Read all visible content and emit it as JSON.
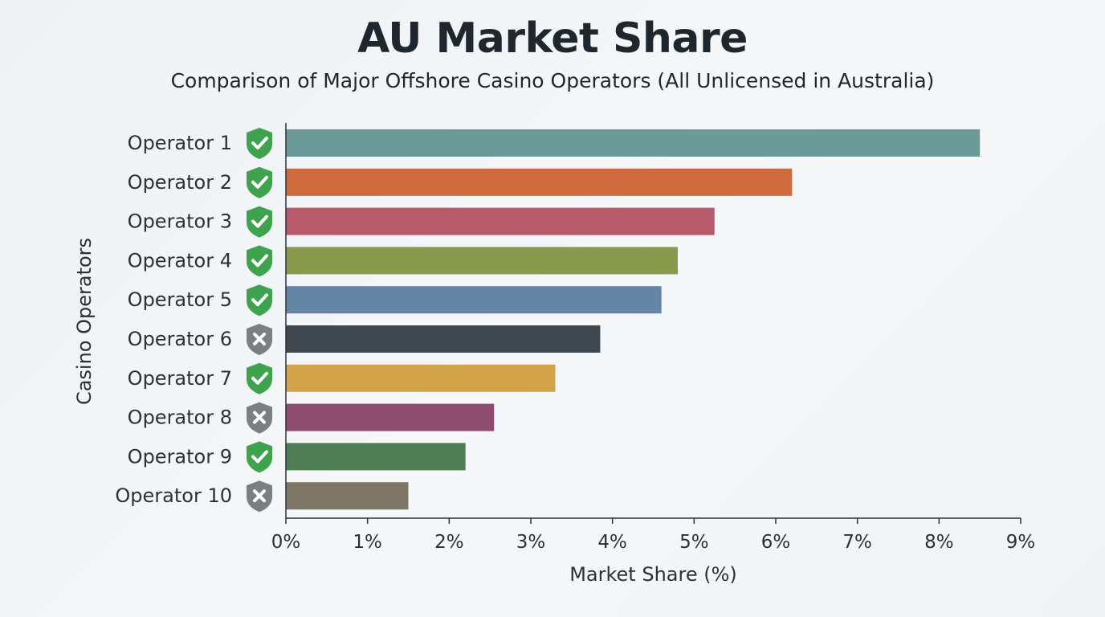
{
  "chart_data": {
    "type": "bar",
    "orientation": "horizontal",
    "title": "AU Market Share",
    "subtitle": "Comparison of Major Offshore Casino Operators (All Unlicensed in Australia)",
    "xlabel": "Market Share (%)",
    "ylabel": "Casino Operators",
    "xlim": [
      0,
      9
    ],
    "xticks": [
      "0%",
      "1%",
      "2%",
      "3%",
      "4%",
      "5%",
      "6%",
      "7%",
      "8%",
      "9%"
    ],
    "grid": false,
    "legend": "none",
    "categories": [
      "Operator 1",
      "Operator 2",
      "Operator 3",
      "Operator 4",
      "Operator 5",
      "Operator 6",
      "Operator 7",
      "Operator 8",
      "Operator 9",
      "Operator 10"
    ],
    "values": [
      8.5,
      6.2,
      5.25,
      4.8,
      4.6,
      3.85,
      3.3,
      2.55,
      2.2,
      1.5
    ],
    "status_icons": [
      "check-shield-icon",
      "check-shield-icon",
      "check-shield-icon",
      "check-shield-icon",
      "check-shield-icon",
      "cross-shield-icon",
      "check-shield-icon",
      "cross-shield-icon",
      "check-shield-icon",
      "cross-shield-icon"
    ],
    "bar_colors": [
      "#6b9a98",
      "#cf6a3c",
      "#b95a6c",
      "#889a4e",
      "#6585a4",
      "#3f474f",
      "#d3a44a",
      "#8e4c6e",
      "#4f7e55",
      "#7e7768"
    ],
    "icon_colors": {
      "check": "#3fa34d",
      "cross": "#7c7f82"
    }
  }
}
